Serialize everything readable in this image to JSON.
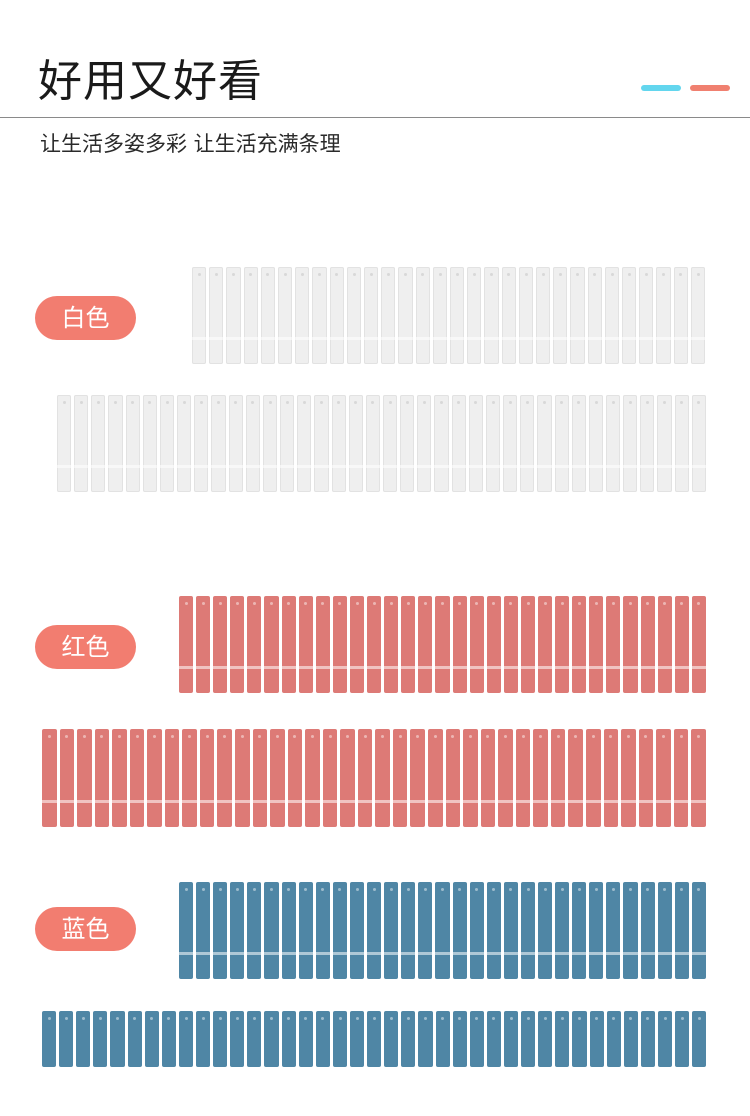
{
  "header": {
    "title": "好用又好看",
    "subtitle": "让生活多姿多彩 让生活充满条理"
  },
  "accents": {
    "cyan": "#63d6ee",
    "coral": "#f08070"
  },
  "variants": [
    {
      "label": "白色",
      "color": "#efefef",
      "pill_color": "#f27d70",
      "strips": [
        {
          "fins": 30
        },
        {
          "fins": 38
        }
      ]
    },
    {
      "label": "红色",
      "color": "#dd7a76",
      "pill_color": "#f27d70",
      "strips": [
        {
          "fins": 31
        },
        {
          "fins": 38
        }
      ]
    },
    {
      "label": "蓝色",
      "color": "#4f86a5",
      "pill_color": "#f27d70",
      "strips": [
        {
          "fins": 31
        },
        {
          "fins": 39
        }
      ]
    }
  ]
}
